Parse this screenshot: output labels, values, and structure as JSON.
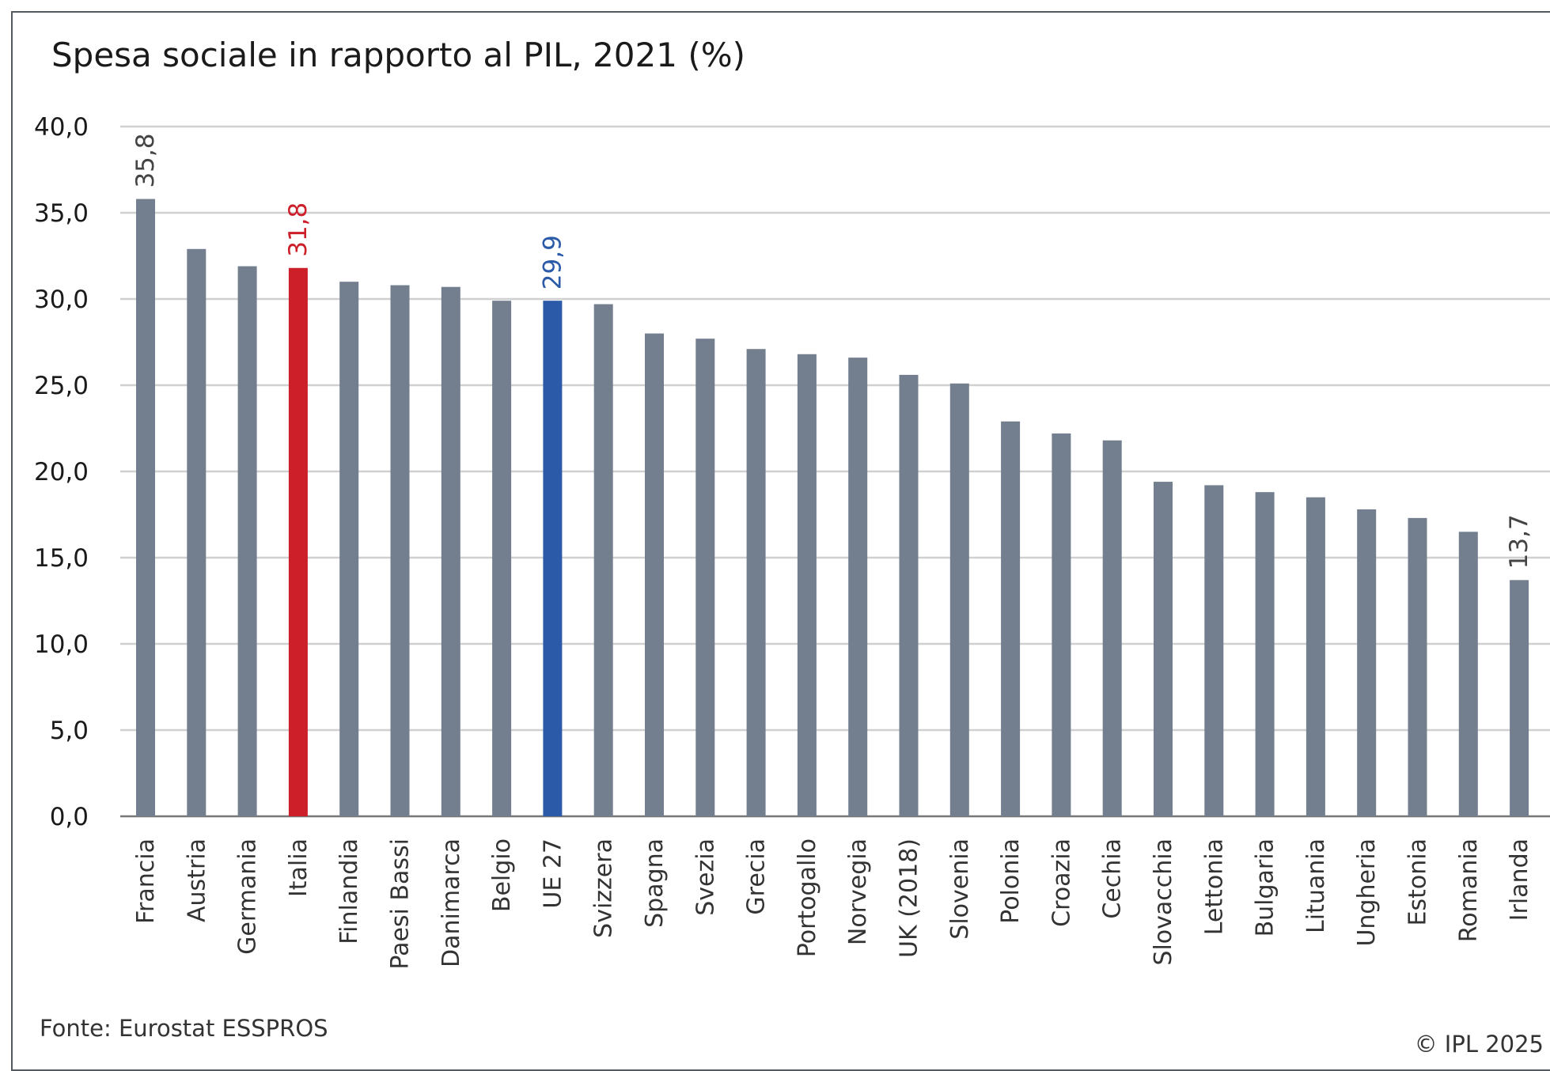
{
  "title": "Spesa sociale in rapporto al PIL, 2021 (%)",
  "source": "Fonte: Eurostat ESSPROS",
  "copyright": "© IPL 2025",
  "colors": {
    "default_bar": "#737f8e",
    "italia_bar": "#cc1f2a",
    "eu_bar": "#2a5aa8",
    "gridline": "#d0d0d0",
    "axis": "#777777"
  },
  "chart_data": {
    "type": "bar",
    "title": "Spesa sociale in rapporto al PIL, 2021 (%)",
    "xlabel": "",
    "ylabel": "",
    "ylim": [
      0,
      40
    ],
    "yticks": [
      "0,0",
      "5,0",
      "10,0",
      "15,0",
      "20,0",
      "25,0",
      "30,0",
      "35,0",
      "40,0"
    ],
    "grid": true,
    "categories": [
      "Francia",
      "Austria",
      "Germania",
      "Italia",
      "Finlandia",
      "Paesi Bassi",
      "Danimarca",
      "Belgio",
      "UE 27",
      "Svizzera",
      "Spagna",
      "Svezia",
      "Grecia",
      "Portogallo",
      "Norvegia",
      "UK (2018)",
      "Slovenia",
      "Polonia",
      "Croazia",
      "Cechia",
      "Slovacchia",
      "Lettonia",
      "Bulgaria",
      "Lituania",
      "Ungheria",
      "Estonia",
      "Romania",
      "Irlanda"
    ],
    "values": [
      35.8,
      32.9,
      31.9,
      31.8,
      31.0,
      30.8,
      30.7,
      29.9,
      29.9,
      29.7,
      28.0,
      27.7,
      27.1,
      26.8,
      26.6,
      25.6,
      25.1,
      22.9,
      22.2,
      21.8,
      19.4,
      19.2,
      18.8,
      18.5,
      17.8,
      17.3,
      16.5,
      13.7
    ],
    "highlights": {
      "Italia": "italia_bar",
      "UE 27": "eu_bar"
    },
    "data_labels": [
      {
        "category": "Francia",
        "text": "35,8",
        "color": "#444444"
      },
      {
        "category": "Italia",
        "text": "31,8",
        "color": "#cc1f2a"
      },
      {
        "category": "UE 27",
        "text": "29,9",
        "color": "#2a5aa8"
      },
      {
        "category": "Irlanda",
        "text": "13,7",
        "color": "#444444"
      }
    ]
  }
}
